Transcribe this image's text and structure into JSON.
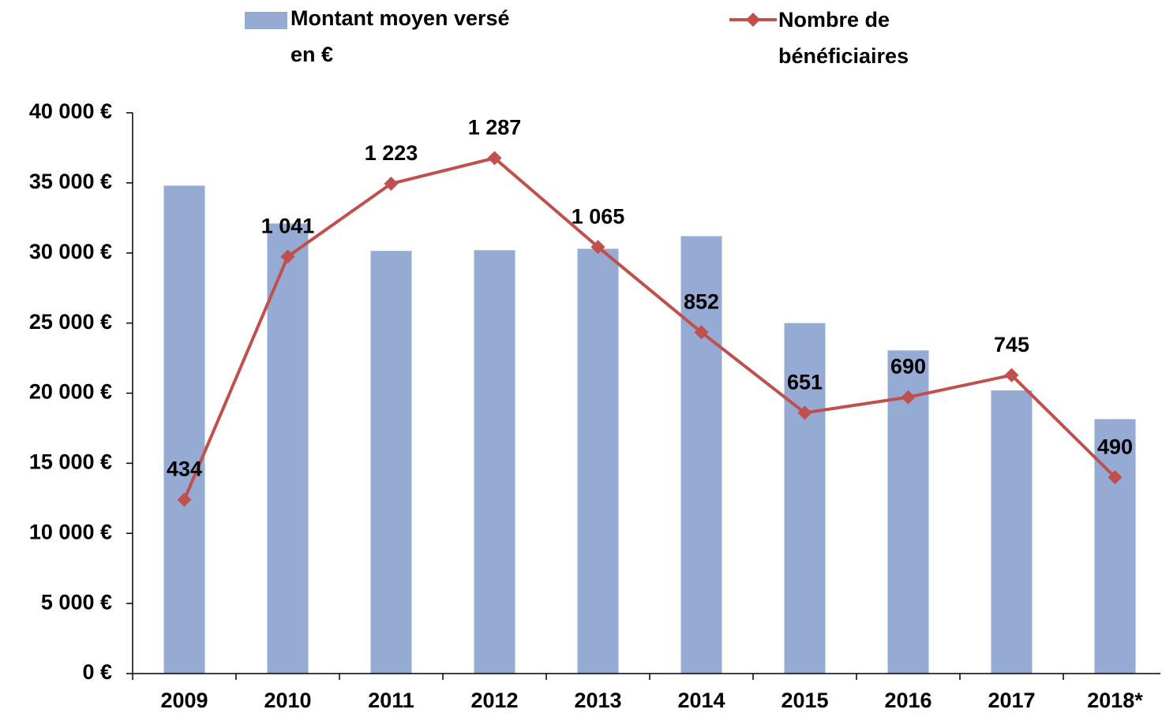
{
  "chart_data": {
    "type": "bar_line",
    "categories": [
      "2009",
      "2010",
      "2011",
      "2012",
      "2013",
      "2014",
      "2015",
      "2016",
      "2017",
      "2018*"
    ],
    "series": [
      {
        "name": "Montant moyen versé en €",
        "color": "#95abd3",
        "type": "bar",
        "values": [
          34800,
          32100,
          30150,
          30200,
          30300,
          31200,
          25000,
          23050,
          20200,
          18150
        ]
      },
      {
        "name": "Nombre de bénéficiaires",
        "color": "#c0504d",
        "type": "line",
        "axis": "y2",
        "values": [
          434,
          1041,
          1223,
          1287,
          1065,
          852,
          651,
          690,
          745,
          490
        ],
        "value_labels": [
          "434",
          "1 041",
          "1 223",
          "1 287",
          "1 065",
          "852",
          "651",
          "690",
          "745",
          "490"
        ]
      }
    ],
    "ylim": [
      0,
      40000
    ],
    "yticks": [
      {
        "value": 0,
        "label": "0 €"
      },
      {
        "value": 5000,
        "label": "5 000 €"
      },
      {
        "value": 10000,
        "label": "10 000 €"
      },
      {
        "value": 15000,
        "label": "15 000 €"
      },
      {
        "value": 20000,
        "label": "20 000 €"
      },
      {
        "value": 25000,
        "label": "25 000 €"
      },
      {
        "value": 30000,
        "label": "30 000 €"
      },
      {
        "value": 35000,
        "label": "35 000 €"
      },
      {
        "value": 40000,
        "label": "40 000 €"
      }
    ],
    "y2lim": [
      0,
      1400
    ],
    "legend": "top"
  }
}
